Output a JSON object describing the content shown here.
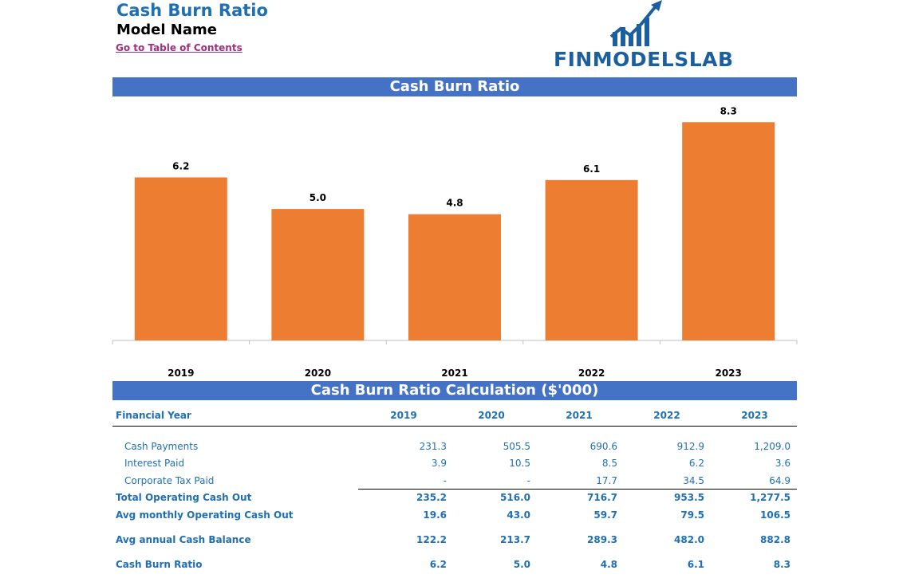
{
  "page": {
    "title": "Cash Burn Ratio",
    "model_name": "Model Name",
    "toc_link": "Go to Table of Contents",
    "logo_text": "FINMODELSLAB"
  },
  "colors": {
    "accent": "#4472c4",
    "bar": "#ed7d31",
    "text_blue": "#1f6fb4",
    "link": "#a0307c"
  },
  "chart_data": {
    "type": "bar",
    "title": "Cash Burn Ratio",
    "categories": [
      "2019",
      "2020",
      "2021",
      "2022",
      "2023"
    ],
    "values": [
      6.2,
      5.0,
      4.8,
      6.1,
      8.3
    ],
    "data_labels": [
      "6.2",
      "5.0",
      "4.8",
      "6.1",
      "8.3"
    ],
    "xlabel": "",
    "ylabel": "",
    "ylim": [
      0,
      9
    ],
    "grid": false,
    "legend": "none"
  },
  "table": {
    "title": "Cash Burn Ratio Calculation ($'000)",
    "header_label": "Financial Year",
    "years": [
      "2019",
      "2020",
      "2021",
      "2022",
      "2023"
    ],
    "rows": [
      {
        "label": "Cash Payments",
        "values": [
          "231.3",
          "505.5",
          "690.6",
          "912.9",
          "1,209.0"
        ]
      },
      {
        "label": "Interest Paid",
        "values": [
          "3.9",
          "10.5",
          "8.5",
          "6.2",
          "3.6"
        ]
      },
      {
        "label": "Corporate Tax Paid",
        "values": [
          "-",
          "-",
          "17.7",
          "34.5",
          "64.9"
        ]
      },
      {
        "label": "Total Operating Cash Out",
        "values": [
          "235.2",
          "516.0",
          "716.7",
          "953.5",
          "1,277.5"
        ]
      },
      {
        "label": "Avg monthly Operating Cash Out",
        "values": [
          "19.6",
          "43.0",
          "59.7",
          "79.5",
          "106.5"
        ]
      },
      {
        "label": "Avg annual Cash Balance",
        "values": [
          "122.2",
          "213.7",
          "289.3",
          "482.0",
          "882.8"
        ]
      },
      {
        "label": "Cash Burn Ratio",
        "values": [
          "6.2",
          "5.0",
          "4.8",
          "6.1",
          "8.3"
        ]
      }
    ]
  }
}
